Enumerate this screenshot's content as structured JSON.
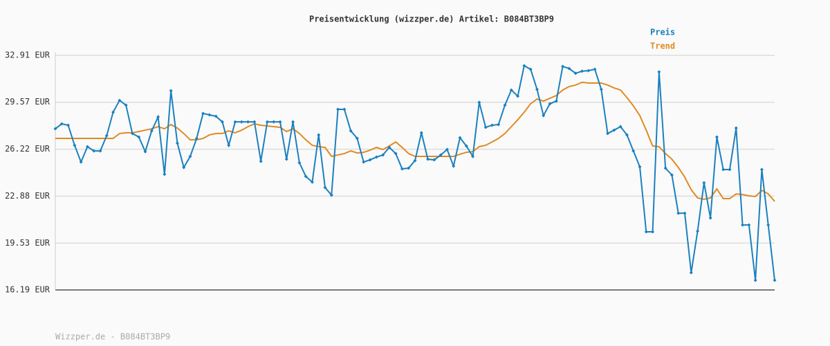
{
  "chart_data": {
    "type": "line",
    "title": "Preisentwicklung (wizzper.de) Artikel: B084BT3BP9",
    "footer": "Wizzper.de - B084BT3BP9",
    "legend": "top-right",
    "grid": true,
    "categories": [
      null,
      null,
      null,
      null,
      null,
      null,
      null,
      null,
      null,
      null,
      null,
      null,
      null,
      null,
      null,
      null,
      null,
      null,
      null,
      null,
      null,
      null,
      null,
      null,
      null,
      null,
      null,
      null,
      null,
      null,
      null,
      null,
      null,
      null,
      null,
      null,
      null,
      null,
      null,
      null,
      null,
      null,
      null,
      null,
      null,
      null,
      null,
      null,
      null,
      null,
      null,
      null,
      null,
      null,
      null,
      null,
      null,
      null,
      null,
      null,
      null,
      null,
      null,
      null,
      null,
      null,
      null,
      null,
      null,
      null,
      null,
      null,
      null,
      null,
      null,
      null,
      null,
      null,
      null,
      null,
      null,
      null,
      null,
      null,
      null,
      null,
      null,
      null,
      null,
      null,
      null,
      null,
      null,
      null,
      null,
      null,
      null,
      null,
      null,
      null,
      null,
      null,
      null,
      null,
      null,
      null,
      null,
      null,
      null,
      null,
      null,
      null,
      null
    ],
    "ylim": [
      16.19,
      32.91
    ],
    "yticks": [
      {
        "value": 16.19,
        "label": "16.19 EUR"
      },
      {
        "value": 19.53,
        "label": "19.53 EUR"
      },
      {
        "value": 22.88,
        "label": "22.88 EUR"
      },
      {
        "value": 26.22,
        "label": "26.22 EUR"
      },
      {
        "value": 29.57,
        "label": "29.57 EUR"
      },
      {
        "value": 32.91,
        "label": "32.91 EUR"
      }
    ],
    "series": [
      {
        "name": "Preis",
        "color": "#1a80bf",
        "values": [
          27.68,
          28.03,
          27.93,
          26.5,
          25.31,
          26.4,
          26.1,
          26.1,
          27.19,
          28.86,
          29.7,
          29.36,
          27.34,
          27.09,
          26.05,
          27.53,
          28.52,
          24.43,
          30.39,
          26.65,
          24.92,
          25.71,
          26.99,
          28.77,
          28.67,
          28.57,
          28.17,
          26.5,
          28.17,
          28.17,
          28.17,
          28.17,
          25.36,
          28.17,
          28.17,
          28.17,
          25.51,
          28.17,
          25.26,
          24.28,
          23.88,
          27.24,
          23.49,
          22.95,
          29.06,
          29.06,
          27.53,
          26.99,
          25.31,
          25.46,
          25.66,
          25.81,
          26.35,
          25.91,
          24.82,
          24.87,
          25.41,
          27.39,
          25.51,
          25.46,
          25.81,
          26.2,
          25.02,
          27.04,
          26.45,
          25.71,
          29.56,
          27.78,
          27.93,
          27.98,
          29.36,
          30.44,
          30.0,
          32.17,
          31.92,
          30.49,
          28.62,
          29.46,
          29.65,
          32.12,
          31.97,
          31.63,
          31.78,
          31.82,
          31.92,
          30.49,
          27.34,
          27.58,
          27.83,
          27.24,
          26.1,
          24.97,
          20.33,
          20.33,
          31.73,
          24.87,
          24.38,
          21.66,
          21.66,
          17.42,
          20.38,
          23.83,
          21.32,
          27.09,
          24.77,
          24.77,
          27.73,
          20.82,
          20.82,
          16.88,
          24.77,
          20.82,
          16.88
        ]
      },
      {
        "name": "Trend",
        "color": "#e08a22",
        "values": [
          26.99,
          26.99,
          26.99,
          26.99,
          26.99,
          26.99,
          26.99,
          26.99,
          26.99,
          26.99,
          27.34,
          27.39,
          27.39,
          27.48,
          27.58,
          27.68,
          27.83,
          27.68,
          27.98,
          27.73,
          27.34,
          26.89,
          26.89,
          26.99,
          27.24,
          27.34,
          27.34,
          27.53,
          27.39,
          27.58,
          27.83,
          28.03,
          27.93,
          27.88,
          27.83,
          27.78,
          27.48,
          27.68,
          27.34,
          26.89,
          26.5,
          26.4,
          26.35,
          25.71,
          25.81,
          25.91,
          26.1,
          25.95,
          26.0,
          26.15,
          26.35,
          26.2,
          26.45,
          26.74,
          26.35,
          25.91,
          25.71,
          25.71,
          25.71,
          25.71,
          25.71,
          25.71,
          25.71,
          25.86,
          26.0,
          26.05,
          26.4,
          26.5,
          26.74,
          26.99,
          27.34,
          27.83,
          28.32,
          28.86,
          29.46,
          29.8,
          29.65,
          29.85,
          30.05,
          30.44,
          30.69,
          30.79,
          30.99,
          30.94,
          30.94,
          30.94,
          30.79,
          30.59,
          30.44,
          29.9,
          29.31,
          28.62,
          27.58,
          26.45,
          26.4,
          25.91,
          25.51,
          24.92,
          24.23,
          23.34,
          22.75,
          22.65,
          22.75,
          23.39,
          22.7,
          22.7,
          23.04,
          22.99,
          22.9,
          22.85,
          23.29,
          23.04,
          22.5
        ]
      }
    ]
  }
}
